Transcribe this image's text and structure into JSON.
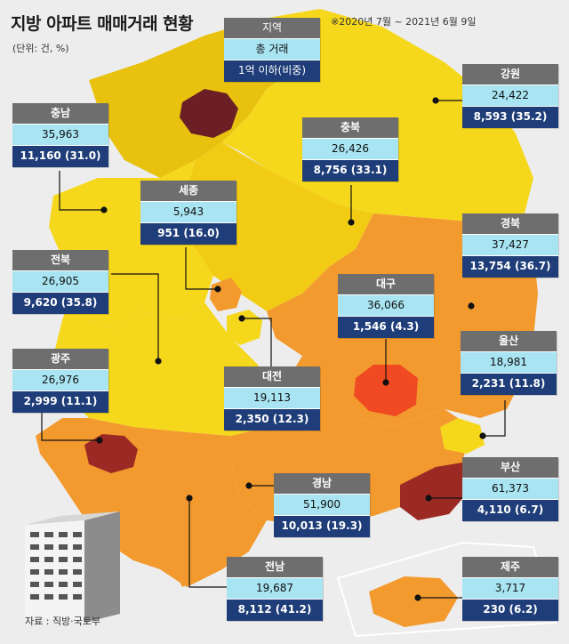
{
  "title": "지방 아파트 매매거래 현황",
  "unit": "(단위: 건, %)",
  "period": "※2020년 7월 ~ 2021년 6월 9일",
  "source": "자료 : 직방·국토부",
  "legend": {
    "region": "지역",
    "total": "총 거래",
    "sub": "1억 이하(비중)"
  },
  "regions": [
    {
      "name": "강원",
      "total": "24,422",
      "sub": "8,593 (35.2)"
    },
    {
      "name": "충남",
      "total": "35,963",
      "sub": "11,160 (31.0)"
    },
    {
      "name": "충북",
      "total": "26,426",
      "sub": "8,756 (33.1)"
    },
    {
      "name": "세종",
      "total": "5,943",
      "sub": "951 (16.0)"
    },
    {
      "name": "경북",
      "total": "37,427",
      "sub": "13,754 (36.7)"
    },
    {
      "name": "전북",
      "total": "26,905",
      "sub": "9,620 (35.8)"
    },
    {
      "name": "대구",
      "total": "36,066",
      "sub": "1,546 (4.3)"
    },
    {
      "name": "광주",
      "total": "26,976",
      "sub": "2,999 (11.1)"
    },
    {
      "name": "울산",
      "total": "18,981",
      "sub": "2,231 (11.8)"
    },
    {
      "name": "대전",
      "total": "19,113",
      "sub": "2,350 (12.3)"
    },
    {
      "name": "부산",
      "total": "61,373",
      "sub": "4,110 (6.7)"
    },
    {
      "name": "경남",
      "total": "51,900",
      "sub": "10,013 (19.3)"
    },
    {
      "name": "전남",
      "total": "19,687",
      "sub": "8,112 (41.2)"
    },
    {
      "name": "제주",
      "total": "3,717",
      "sub": "230 (6.2)"
    }
  ],
  "colors": {
    "yellow": "#f5d81c",
    "orange": "#f39a2f",
    "red": "#ef4a22",
    "darkred": "#9b2a24",
    "maroon": "#6b1f24",
    "header": "#6e6e6e",
    "total_bg": "#a8e4f2",
    "sub_bg": "#1f3d78"
  }
}
